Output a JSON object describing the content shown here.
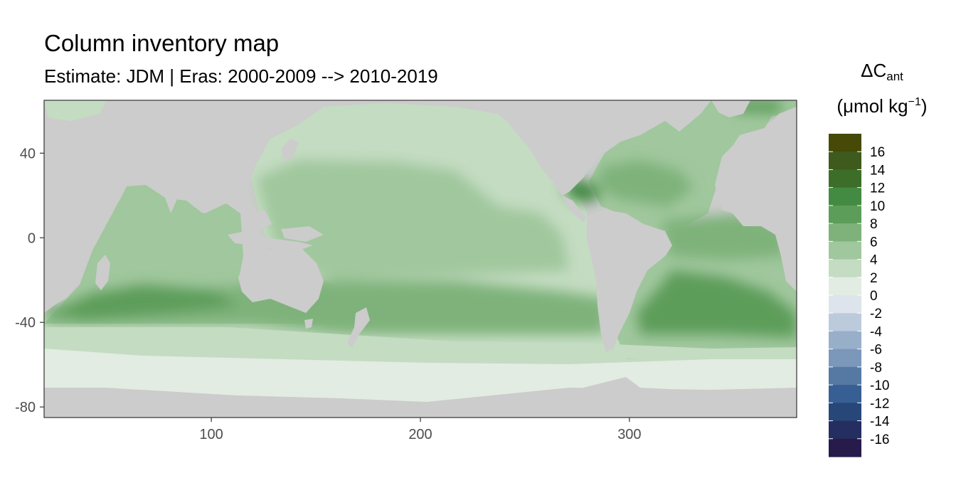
{
  "chart_data": {
    "type": "heatmap",
    "title": "Column inventory map",
    "subtitle": "Estimate: JDM  | Eras: 2000-2009 --> 2010-2019",
    "legend": {
      "title_main": "ΔC",
      "title_sub": "ant",
      "unit_prefix": "(μmol kg",
      "unit_exp": "−1",
      "unit_suffix": ")",
      "placement": "right",
      "breaks": [
        "16",
        "14",
        "12",
        "10",
        "8",
        "6",
        "4",
        "2",
        "0",
        "-2",
        "-4",
        "-6",
        "-8",
        "-10",
        "-12",
        "-14",
        "-16"
      ],
      "colors": [
        "#464a06",
        "#3f5a1d",
        "#3d6e29",
        "#438a42",
        "#5d9d5a",
        "#7eb27a",
        "#a0c79d",
        "#c4dcc2",
        "#e2ece2",
        "#dde4ec",
        "#bccbdc",
        "#98afca",
        "#7b97ba",
        "#5679a3",
        "#375f93",
        "#274779",
        "#252e60",
        "#261b4a"
      ]
    },
    "x_axis": {
      "ticks": [
        100,
        200,
        300
      ],
      "range": [
        20,
        380
      ]
    },
    "y_axis": {
      "ticks": [
        40,
        0,
        -40,
        -80
      ],
      "range": [
        -85,
        65
      ]
    },
    "land_color": "#cccccc",
    "grid": false
  }
}
